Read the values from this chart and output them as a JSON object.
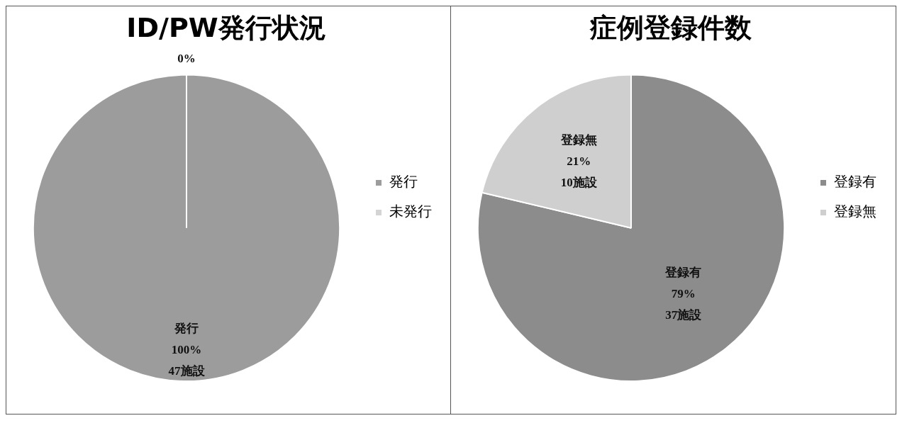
{
  "chart_data": [
    {
      "type": "pie",
      "title": "ID/PW発行状況",
      "categories": [
        "発行",
        "未発行"
      ],
      "values": [
        47,
        0
      ],
      "colors": [
        "#9c9c9c",
        "#d4d4d4"
      ],
      "value_labels": [
        "発行\n100%\n47施設",
        "0%"
      ],
      "legend": "right"
    },
    {
      "type": "pie",
      "title": "症例登録件数",
      "categories": [
        "登録有",
        "登録無"
      ],
      "values": [
        37,
        10
      ],
      "colors": [
        "#8c8c8c",
        "#cfcfcf"
      ],
      "value_labels": [
        "登録有\n79%\n37施設",
        "登録無\n21%\n10施設"
      ],
      "legend": "right"
    }
  ]
}
